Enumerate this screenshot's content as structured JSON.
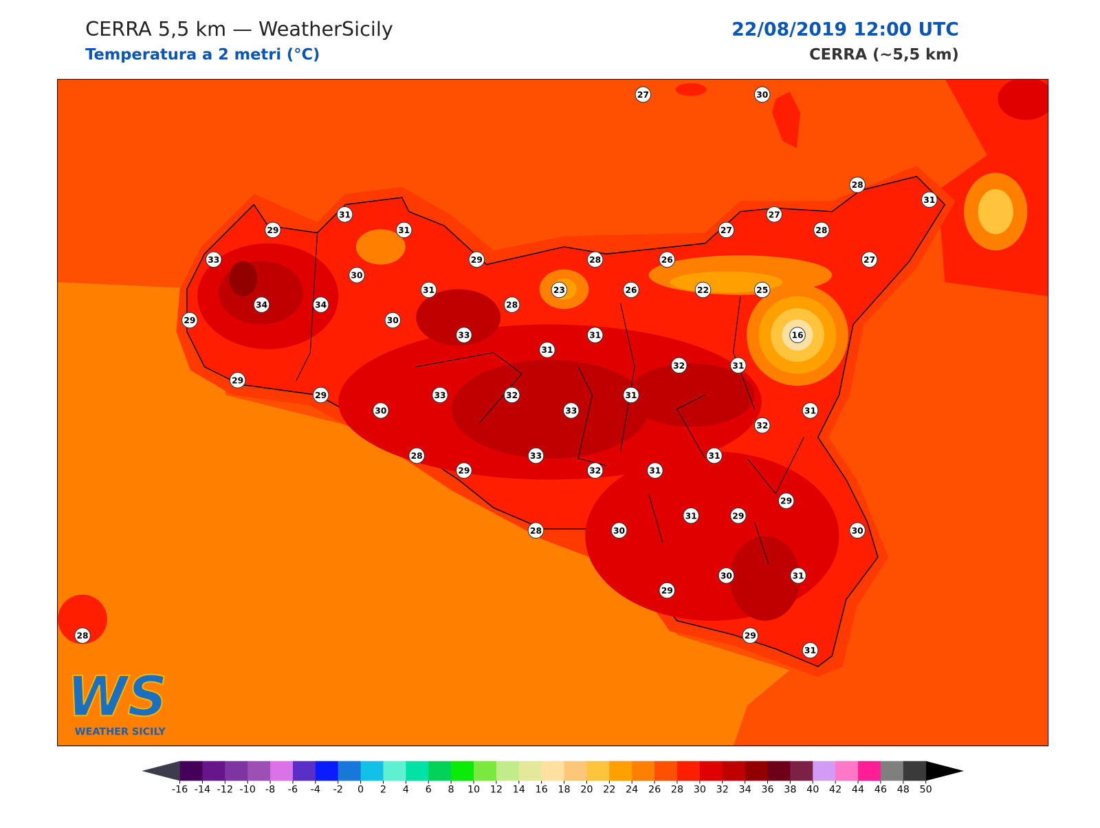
{
  "header": {
    "title": "CERRA 5,5 km — WeatherSicily",
    "subtitle": "Temperatura a 2 metri (°C)",
    "date": "22/08/2019 12:00 UTC",
    "model": "CERRA (~5,5 km)"
  },
  "logo": {
    "mark": "WS",
    "name": "WEATHER SICILY"
  },
  "stations": [
    {
      "value": 27
    },
    {
      "value": 30
    },
    {
      "value": 28
    },
    {
      "value": 31
    },
    {
      "value": 31
    },
    {
      "value": 29
    },
    {
      "value": 31
    },
    {
      "value": 27
    },
    {
      "value": 27
    },
    {
      "value": 28
    },
    {
      "value": 33
    },
    {
      "value": 29
    },
    {
      "value": 28
    },
    {
      "value": 26
    },
    {
      "value": 27
    },
    {
      "value": 30
    },
    {
      "value": 31
    },
    {
      "value": 23
    },
    {
      "value": 26
    },
    {
      "value": 22
    },
    {
      "value": 25
    },
    {
      "value": 34
    },
    {
      "value": 34
    },
    {
      "value": 28
    },
    {
      "value": 29
    },
    {
      "value": 30
    },
    {
      "value": 33
    },
    {
      "value": 31
    },
    {
      "value": 16
    },
    {
      "value": 31
    },
    {
      "value": 32
    },
    {
      "value": 31
    },
    {
      "value": 29
    },
    {
      "value": 29
    },
    {
      "value": 33
    },
    {
      "value": 32
    },
    {
      "value": 31
    },
    {
      "value": 30
    },
    {
      "value": 33
    },
    {
      "value": 31
    },
    {
      "value": 32
    },
    {
      "value": 28
    },
    {
      "value": 33
    },
    {
      "value": 31
    },
    {
      "value": 29
    },
    {
      "value": 32
    },
    {
      "value": 31
    },
    {
      "value": 29
    },
    {
      "value": 31
    },
    {
      "value": 29
    },
    {
      "value": 28
    },
    {
      "value": 30
    },
    {
      "value": 30
    },
    {
      "value": 30
    },
    {
      "value": 31
    },
    {
      "value": 29
    },
    {
      "value": 28
    },
    {
      "value": 29
    },
    {
      "value": 31
    }
  ],
  "colorbar": {
    "ticks": [
      -16,
      -14,
      -12,
      -10,
      -8,
      -6,
      -4,
      -2,
      0,
      2,
      4,
      6,
      8,
      10,
      12,
      14,
      16,
      18,
      20,
      22,
      24,
      26,
      28,
      30,
      32,
      34,
      36,
      38,
      40,
      42,
      44,
      46,
      48,
      50
    ],
    "colors": [
      "#45005a",
      "#66168a",
      "#7e35a1",
      "#9c50b5",
      "#dc72e8",
      "#5a2fc8",
      "#0a1cff",
      "#1877d8",
      "#12c2e6",
      "#5ef0d0",
      "#00e3a4",
      "#00d25a",
      "#0aeb0a",
      "#7ae83c",
      "#c2ec8a",
      "#e4e89a",
      "#ffe0a0",
      "#fcc77a",
      "#ffc43c",
      "#ffa000",
      "#ff8000",
      "#ff4f00",
      "#ff1e00",
      "#e00000",
      "#c00000",
      "#930000",
      "#6b0018",
      "#7c2046",
      "#d29bf5",
      "#ff78c8",
      "#ff1e96",
      "#7f7f7f",
      "#3a3a3a"
    ],
    "under": "#3c3c4c",
    "over": "#000000"
  }
}
